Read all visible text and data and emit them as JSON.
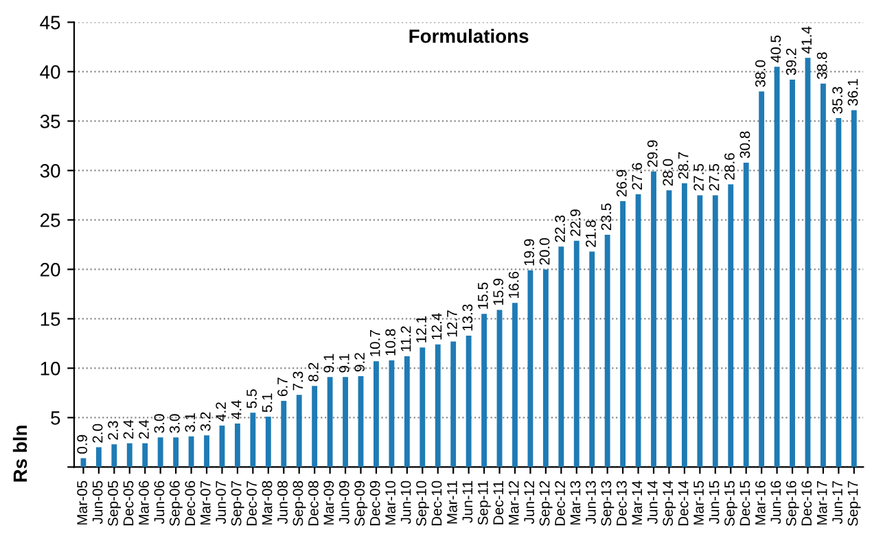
{
  "chart_data": {
    "type": "bar",
    "title": "Formulations",
    "ylabel": "Rs bln",
    "categories": [
      "Mar-05",
      "Jun-05",
      "Sep-05",
      "Dec-05",
      "Mar-06",
      "Jun-06",
      "Sep-06",
      "Dec-06",
      "Mar-07",
      "Jun-07",
      "Sep-07",
      "Dec-07",
      "Mar-08",
      "Jun-08",
      "Sep-08",
      "Dec-08",
      "Mar-09",
      "Jun-09",
      "Sep-09",
      "Dec-09",
      "Mar-10",
      "Jun-10",
      "Sep-10",
      "Dec-10",
      "Mar-11",
      "Jun-11",
      "Sep-11",
      "Dec-11",
      "Mar-12",
      "Jun-12",
      "Sep-12",
      "Dec-12",
      "Mar-13",
      "Jun-13",
      "Sep-13",
      "Dec-13",
      "Mar-14",
      "Jun-14",
      "Sep-14",
      "Dec-14",
      "Mar-15",
      "Jun-15",
      "Sep-15",
      "Dec-15",
      "Mar-16",
      "Jun-16",
      "Sep-16",
      "Dec-16",
      "Mar-17",
      "Jun-17",
      "Sep-17"
    ],
    "values": [
      0.9,
      2.0,
      2.3,
      2.4,
      2.4,
      3.0,
      3.0,
      3.1,
      3.2,
      4.2,
      4.4,
      5.5,
      5.1,
      6.7,
      7.3,
      8.2,
      9.1,
      9.1,
      9.2,
      10.7,
      10.8,
      11.2,
      12.1,
      12.4,
      12.7,
      13.3,
      15.5,
      15.9,
      16.6,
      19.9,
      20.0,
      22.3,
      22.9,
      21.8,
      23.5,
      26.9,
      27.6,
      29.9,
      28.0,
      28.7,
      27.5,
      27.5,
      28.6,
      30.8,
      38.0,
      40.5,
      39.2,
      41.4,
      38.8,
      35.3,
      36.1
    ],
    "color": "#1f7bb5",
    "ylim": [
      0,
      45
    ],
    "yticks": [
      {
        "value": 0,
        "label": null
      },
      5,
      10,
      15,
      20,
      25,
      30,
      35,
      40,
      45
    ],
    "value_labels": [
      "0.9",
      "2.0",
      "2.3",
      "2.4",
      "2.4",
      "3.0",
      "3.0",
      "3.1",
      "3.2",
      "4.2",
      "4.4",
      "5.5",
      "5.1",
      "6.7",
      "7.3",
      "8.2",
      "9.1",
      "9.1",
      "9.2",
      "10.7",
      "10.8",
      "11.2",
      "12.1",
      "12.4",
      "12.7",
      "13.3",
      "15.5",
      "15.9",
      "16.6",
      "19.9",
      "20.0",
      "22.3",
      "22.9",
      "21.8",
      "23.5",
      "26.9",
      "27.6",
      "29.9",
      "28.0",
      "28.7",
      "27.5",
      "27.5",
      "28.6",
      "30.8",
      "38.0",
      "40.5",
      "39.2",
      "41.4",
      "38.8",
      "35.3",
      "36.1"
    ],
    "grid": "y"
  }
}
